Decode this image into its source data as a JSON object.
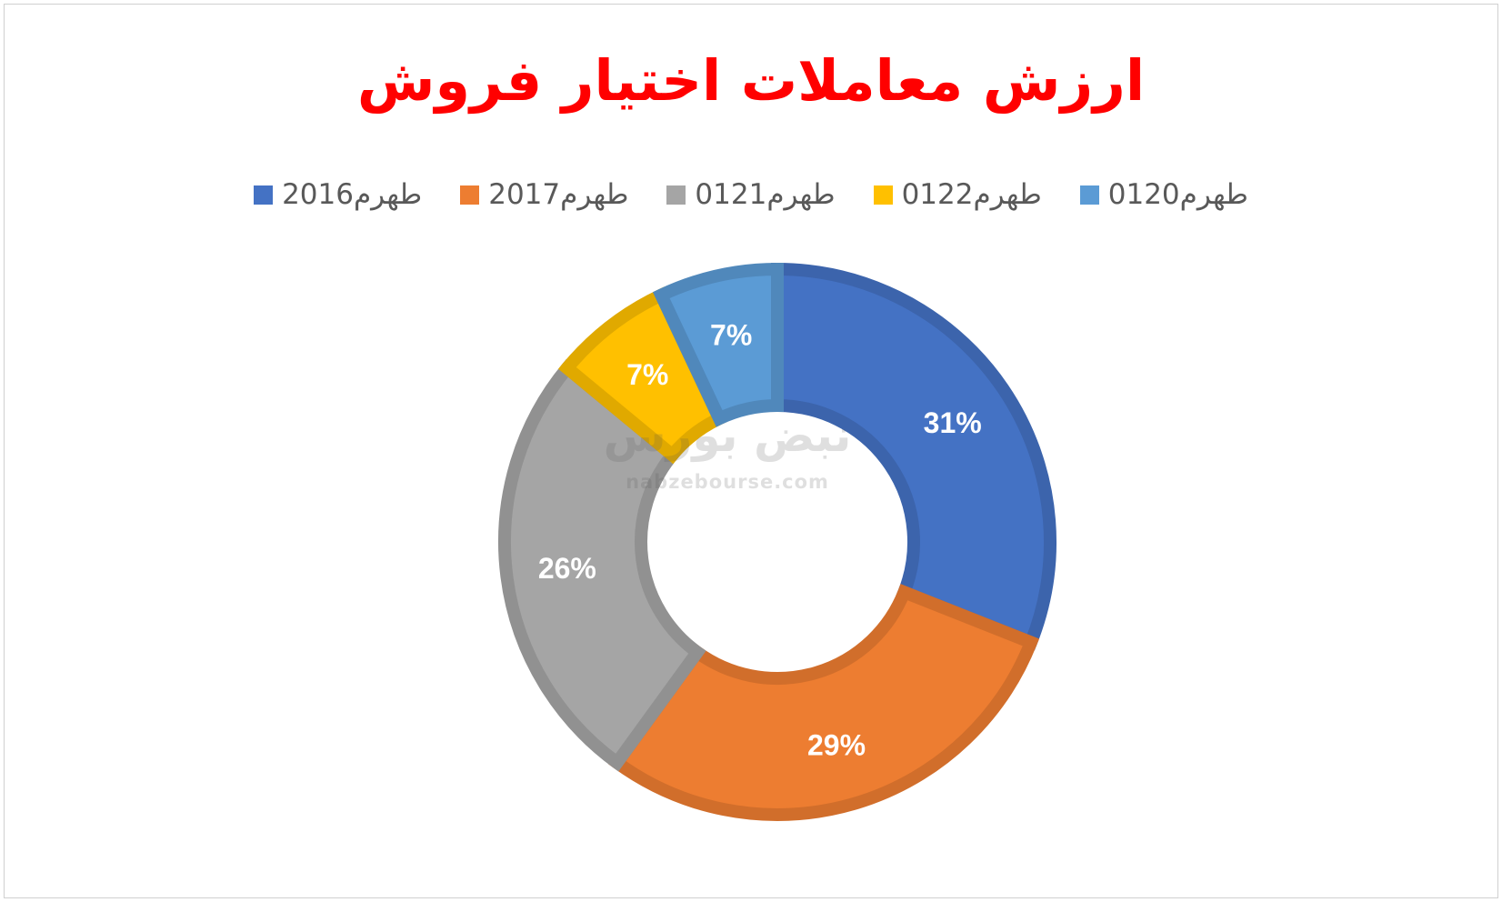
{
  "chart_data": {
    "type": "pie",
    "variant": "doughnut",
    "title": "ارزش معاملات اختیار فروش",
    "legend_position": "top",
    "series": [
      {
        "name": "طهرم2016",
        "value": 31,
        "label": "31%",
        "color": "#4472c4"
      },
      {
        "name": "طهرم2017",
        "value": 29,
        "label": "29%",
        "color": "#ed7d31"
      },
      {
        "name": "طهرم0121",
        "value": 26,
        "label": "26%",
        "color": "#a5a5a5"
      },
      {
        "name": "طهرم0122",
        "value": 7,
        "label": "7%",
        "color": "#ffc000"
      },
      {
        "name": "طهرم0120",
        "value": 7,
        "label": "7%",
        "color": "#5b9bd5"
      }
    ]
  },
  "watermark": {
    "text_fa": "نبض بورس",
    "text_en": "nabzebourse.com"
  }
}
